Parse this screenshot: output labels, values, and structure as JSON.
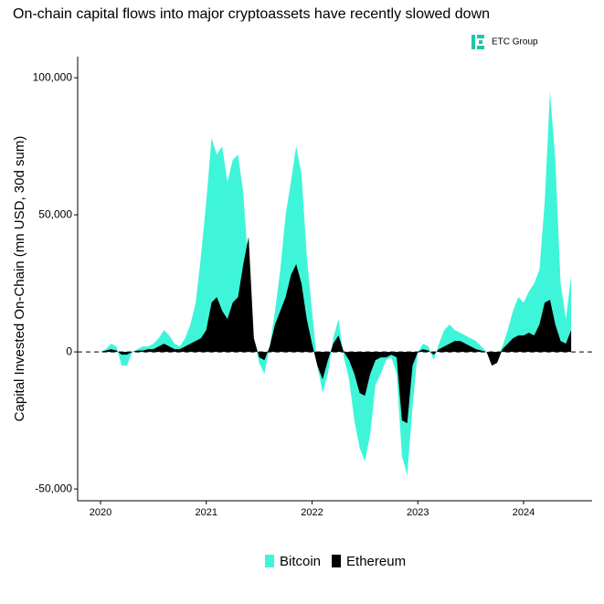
{
  "chart_data": {
    "type": "area",
    "title": "On-chain capital flows into major cryptoassets have recently slowed down",
    "logo": "ETC Group",
    "ylabel": "Capital Invested On-Chain (mn USD, 30d sum)",
    "x": [
      2020,
      2020.05,
      2020.1,
      2020.15,
      2020.2,
      2020.25,
      2020.3,
      2020.35,
      2020.4,
      2020.45,
      2020.5,
      2020.55,
      2020.6,
      2020.65,
      2020.7,
      2020.75,
      2020.8,
      2020.85,
      2020.9,
      2020.95,
      2021,
      2021.05,
      2021.1,
      2021.15,
      2021.2,
      2021.25,
      2021.3,
      2021.35,
      2021.4,
      2021.45,
      2021.5,
      2021.55,
      2021.6,
      2021.65,
      2021.7,
      2021.75,
      2021.8,
      2021.85,
      2021.9,
      2021.95,
      2022,
      2022.05,
      2022.1,
      2022.15,
      2022.2,
      2022.25,
      2022.3,
      2022.35,
      2022.4,
      2022.45,
      2022.5,
      2022.55,
      2022.6,
      2022.65,
      2022.7,
      2022.75,
      2022.8,
      2022.85,
      2022.9,
      2022.95,
      2023,
      2023.05,
      2023.1,
      2023.15,
      2023.2,
      2023.25,
      2023.3,
      2023.35,
      2023.4,
      2023.45,
      2023.5,
      2023.55,
      2023.6,
      2023.65,
      2023.7,
      2023.75,
      2023.8,
      2023.85,
      2023.9,
      2023.95,
      2024,
      2024.05,
      2024.1,
      2024.15,
      2024.2,
      2024.25,
      2024.3,
      2024.35,
      2024.4,
      2024.45
    ],
    "series": [
      {
        "name": "Bitcoin",
        "color": "#3ff5d9",
        "values": [
          0,
          1000,
          3000,
          2000,
          -5000,
          -5000,
          0,
          1000,
          2000,
          2000,
          3000,
          5000,
          8000,
          6000,
          3000,
          2000,
          5000,
          10000,
          18000,
          35000,
          55000,
          78000,
          72000,
          75000,
          62000,
          70000,
          72000,
          58000,
          30000,
          5000,
          -4000,
          -8000,
          2000,
          15000,
          30000,
          50000,
          62000,
          75000,
          65000,
          35000,
          15000,
          -5000,
          -15000,
          -8000,
          5000,
          12000,
          -2000,
          -10000,
          -25000,
          -35000,
          -40000,
          -30000,
          -12000,
          -8000,
          -3000,
          -2000,
          -8000,
          -38000,
          -45000,
          -20000,
          0,
          3000,
          2000,
          -3000,
          3000,
          8000,
          10000,
          8000,
          7000,
          6000,
          5000,
          4000,
          2000,
          0,
          -3000,
          -2000,
          2000,
          8000,
          15000,
          20000,
          18000,
          22000,
          25000,
          30000,
          55000,
          95000,
          70000,
          25000,
          12000,
          28000
        ]
      },
      {
        "name": "Ethereum",
        "color": "#000000",
        "values": [
          0,
          500,
          1000,
          500,
          -1000,
          -1000,
          0,
          500,
          500,
          1000,
          1000,
          2000,
          3000,
          2000,
          1000,
          1000,
          2000,
          3000,
          4000,
          5000,
          8000,
          18000,
          20000,
          15000,
          12000,
          18000,
          20000,
          32000,
          42000,
          5000,
          -2000,
          -3000,
          2000,
          10000,
          15000,
          20000,
          28000,
          32000,
          25000,
          12000,
          3000,
          -5000,
          -10000,
          -3000,
          3000,
          6000,
          0,
          -3000,
          -8000,
          -15000,
          -16000,
          -8000,
          -3000,
          -2000,
          -2000,
          -1000,
          -2000,
          -25000,
          -26000,
          -5000,
          0,
          1000,
          500,
          -1000,
          1000,
          2000,
          3000,
          4000,
          4000,
          3000,
          2000,
          1000,
          500,
          0,
          -5000,
          -4000,
          1000,
          3000,
          5000,
          6000,
          6000,
          7000,
          6000,
          10000,
          18000,
          19000,
          10000,
          4000,
          3000,
          8000
        ]
      }
    ],
    "xlim": [
      2019.784,
      2024.648
    ],
    "xticks": [
      2020,
      2021,
      2022,
      2023,
      2024
    ],
    "ylim": [
      -54300,
      107700
    ],
    "yticks": [
      {
        "value": 100000,
        "label": "100,000"
      },
      {
        "value": 50000,
        "label": "50,000"
      },
      0,
      {
        "value": -50000,
        "label": "-50,000"
      }
    ],
    "legend": "bottom"
  }
}
